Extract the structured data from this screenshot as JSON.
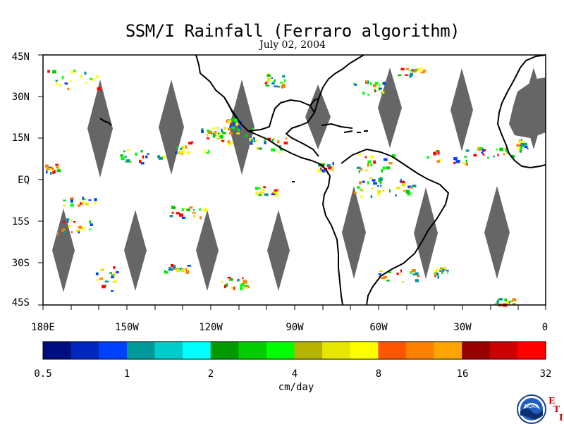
{
  "title": "SSM/I Rainfall (Ferraro algorithm)",
  "subtitle": "July 02, 2004",
  "lat_labels": [
    "45N",
    "30N",
    "15N",
    "EQ",
    "15S",
    "30S",
    "45S"
  ],
  "lon_labels": [
    "180E",
    "150W",
    "120W",
    "90W",
    "60W",
    "30W",
    "0"
  ],
  "colorbar": {
    "unit": "cm/day",
    "tick_labels": [
      "0.5",
      "1",
      "2",
      "4",
      "8",
      "16",
      "32"
    ],
    "colors": [
      "#000e80",
      "#0026bf",
      "#0040ff",
      "#009999",
      "#00cccc",
      "#00ffff",
      "#009900",
      "#00cc00",
      "#00ff00",
      "#b3b300",
      "#e6e600",
      "#ffff00",
      "#ff5500",
      "#ff7f00",
      "#ffa500",
      "#990000",
      "#cc0000",
      "#ff0000"
    ]
  },
  "map_colors": {
    "land": "#ffffff",
    "coast": "#000000",
    "no_data": "#666666",
    "frame": "#000000"
  },
  "logo": {
    "text": "NOAA",
    "letters": [
      "E",
      "T",
      "I"
    ]
  }
}
